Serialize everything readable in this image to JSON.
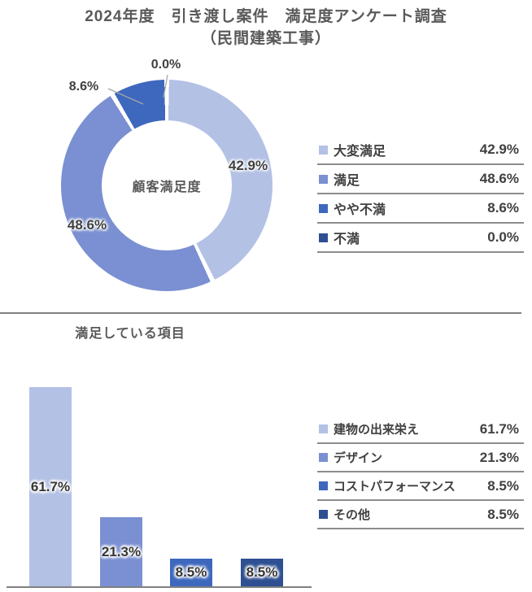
{
  "header": {
    "title_line1": "2024年度　引き渡し案件　満足度アンケート調査",
    "title_line2": "（民間建築工事）"
  },
  "colors": {
    "very_light_blue": "#B3C1E5",
    "medium_blue": "#7B90D2",
    "strong_blue": "#3E68BD",
    "dark_navy": "#2E4F92",
    "title_gray": "#595959",
    "text_dark": "#404040",
    "axis_gray": "#808080",
    "leader_gray": "#A6A6A6"
  },
  "donut_section": {
    "center_label": "顧客満足度",
    "callout_labels": [
      "42.9%",
      "48.6%",
      "8.6%",
      "0.0%"
    ],
    "legend": [
      {
        "label": "大変満足",
        "value": "42.9%"
      },
      {
        "label": "満足",
        "value": "48.6%"
      },
      {
        "label": "やや不満",
        "value": "8.6%"
      },
      {
        "label": "不満",
        "value": "0.0%"
      }
    ]
  },
  "bar_section": {
    "title": "満足している項目",
    "legend": [
      {
        "label": "建物の出来栄え",
        "value": "61.7%"
      },
      {
        "label": "デザイン",
        "value": "21.3%"
      },
      {
        "label": "コストパフォーマンス",
        "value": "8.5%"
      },
      {
        "label": "その他",
        "value": "8.5%"
      }
    ]
  },
  "chart_data": [
    {
      "type": "pie",
      "subtype": "donut",
      "title": "2024年度　引き渡し案件　満足度アンケート調査（民間建築工事）",
      "center_label": "顧客満足度",
      "categories": [
        "大変満足",
        "満足",
        "やや不満",
        "不満"
      ],
      "values": [
        42.9,
        48.6,
        8.6,
        0.0
      ],
      "unit": "%",
      "colors": [
        "#B3C1E5",
        "#7B90D2",
        "#3E68BD",
        "#2E4F92"
      ],
      "start_angle_deg": 0,
      "direction": "clockwise",
      "legend_position": "right",
      "data_labels": [
        "42.9%",
        "48.6%",
        "8.6%",
        "0.0%"
      ]
    },
    {
      "type": "bar",
      "title": "満足している項目",
      "categories": [
        "建物の出来栄え",
        "デザイン",
        "コストパフォーマンス",
        "その他"
      ],
      "values": [
        61.7,
        21.3,
        8.5,
        8.5
      ],
      "unit": "%",
      "colors": [
        "#B3C1E5",
        "#7B90D2",
        "#3E68BD",
        "#2E4F92"
      ],
      "ylim": [
        0,
        64
      ],
      "gridlines": false,
      "legend_position": "right",
      "data_label_position": "inside-center"
    }
  ]
}
